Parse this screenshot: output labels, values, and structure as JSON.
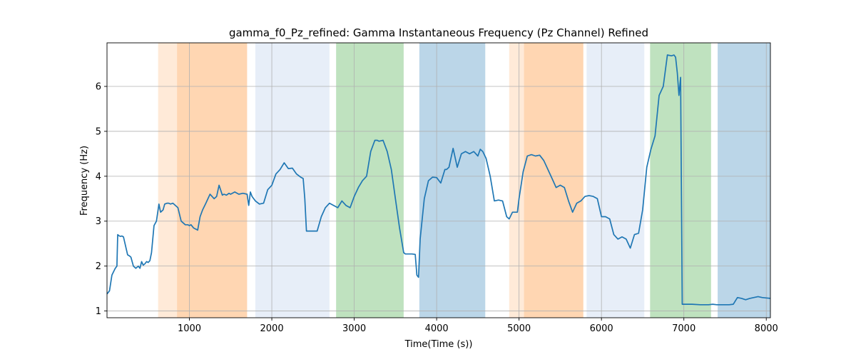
{
  "chart_data": {
    "type": "line",
    "title": "gamma_f0_Pz_refined: Gamma Instantaneous Frequency (Pz Channel) Refined",
    "xlabel": "Time(Time (s))",
    "ylabel": "Frequency (Hz)",
    "xlim": [
      0,
      8050
    ],
    "ylim": [
      0.85,
      6.97
    ],
    "xticks": [
      1000,
      2000,
      3000,
      4000,
      5000,
      6000,
      7000,
      8000
    ],
    "yticks": [
      1,
      2,
      3,
      4,
      5,
      6
    ],
    "grid": true,
    "line_color": "#1f77b4",
    "bands": [
      {
        "x0": 620,
        "x1": 850,
        "color": "#ff7f0e",
        "alpha": 0.16
      },
      {
        "x0": 850,
        "x1": 1700,
        "color": "#ff7f0e",
        "alpha": 0.32
      },
      {
        "x0": 1800,
        "x1": 2700,
        "color": "#aec7e8",
        "alpha": 0.3
      },
      {
        "x0": 2780,
        "x1": 3600,
        "color": "#2ca02c",
        "alpha": 0.3
      },
      {
        "x0": 3790,
        "x1": 4590,
        "color": "#1f77b4",
        "alpha": 0.3
      },
      {
        "x0": 4880,
        "x1": 5060,
        "color": "#ff7f0e",
        "alpha": 0.16
      },
      {
        "x0": 5060,
        "x1": 5780,
        "color": "#ff7f0e",
        "alpha": 0.32
      },
      {
        "x0": 5820,
        "x1": 6520,
        "color": "#aec7e8",
        "alpha": 0.3
      },
      {
        "x0": 6590,
        "x1": 7330,
        "color": "#2ca02c",
        "alpha": 0.3
      },
      {
        "x0": 7410,
        "x1": 8050,
        "color": "#1f77b4",
        "alpha": 0.3
      }
    ],
    "series": [
      {
        "x": [
          0,
          30,
          60,
          100,
          120,
          130,
          150,
          165,
          180,
          200,
          250,
          270,
          290,
          320,
          350,
          380,
          400,
          420,
          440,
          460,
          480,
          500,
          520,
          540,
          570,
          600,
          630,
          650,
          680,
          700,
          730,
          750,
          770,
          800,
          830,
          860,
          900,
          950,
          980,
          1000,
          1020,
          1050,
          1100,
          1130,
          1160,
          1200,
          1250,
          1300,
          1330,
          1360,
          1400,
          1420,
          1450,
          1480,
          1500,
          1550,
          1600,
          1650,
          1700,
          1720,
          1740,
          1760,
          1800,
          1850,
          1900,
          1950,
          2000,
          2050,
          2100,
          2150,
          2200,
          2250,
          2300,
          2350,
          2380,
          2400,
          2420,
          2450,
          2500,
          2550,
          2600,
          2650,
          2700,
          2750,
          2800,
          2850,
          2900,
          2950,
          3000,
          3050,
          3100,
          3150,
          3200,
          3250,
          3280,
          3300,
          3350,
          3400,
          3450,
          3500,
          3550,
          3600,
          3620,
          3650,
          3700,
          3740,
          3760,
          3780,
          3800,
          3850,
          3900,
          3950,
          4000,
          4050,
          4100,
          4120,
          4150,
          4200,
          4250,
          4300,
          4350,
          4400,
          4450,
          4500,
          4530,
          4560,
          4600,
          4650,
          4700,
          4750,
          4800,
          4850,
          4880,
          4920,
          4980,
          5000,
          5050,
          5100,
          5150,
          5200,
          5250,
          5300,
          5350,
          5400,
          5450,
          5500,
          5550,
          5600,
          5650,
          5700,
          5750,
          5800,
          5850,
          5900,
          5950,
          6000,
          6050,
          6100,
          6150,
          6200,
          6250,
          6300,
          6350,
          6400,
          6450,
          6500,
          6550,
          6600,
          6650,
          6700,
          6750,
          6800,
          6850,
          6880,
          6900,
          6920,
          6940,
          6960,
          6980,
          7000,
          7050,
          7100,
          7200,
          7300,
          7350,
          7400,
          7450,
          7500,
          7550,
          7600,
          7650,
          7700,
          7750,
          7800,
          7850,
          7900,
          7950,
          8000,
          8050
        ],
        "y": [
          1.38,
          1.45,
          1.8,
          1.95,
          2.0,
          2.7,
          2.67,
          2.66,
          2.67,
          2.65,
          2.25,
          2.23,
          2.2,
          2.0,
          1.95,
          2.0,
          1.95,
          2.1,
          2.02,
          2.05,
          2.1,
          2.08,
          2.12,
          2.3,
          2.9,
          3.0,
          3.38,
          3.2,
          3.25,
          3.38,
          3.4,
          3.4,
          3.38,
          3.4,
          3.35,
          3.3,
          3.0,
          2.92,
          2.92,
          2.9,
          2.92,
          2.85,
          2.8,
          3.1,
          3.25,
          3.4,
          3.6,
          3.5,
          3.55,
          3.8,
          3.58,
          3.6,
          3.58,
          3.62,
          3.6,
          3.65,
          3.6,
          3.62,
          3.6,
          3.35,
          3.65,
          3.55,
          3.45,
          3.38,
          3.4,
          3.7,
          3.8,
          4.05,
          4.15,
          4.3,
          4.17,
          4.18,
          4.05,
          3.98,
          3.95,
          3.5,
          2.78,
          2.78,
          2.78,
          2.78,
          3.1,
          3.3,
          3.4,
          3.35,
          3.3,
          3.45,
          3.35,
          3.3,
          3.55,
          3.75,
          3.9,
          4.0,
          4.55,
          4.8,
          4.8,
          4.78,
          4.8,
          4.55,
          4.15,
          3.5,
          2.85,
          2.3,
          2.27,
          2.27,
          2.27,
          2.26,
          1.8,
          1.75,
          2.6,
          3.5,
          3.9,
          3.98,
          3.97,
          3.85,
          4.15,
          4.15,
          4.2,
          4.62,
          4.2,
          4.5,
          4.55,
          4.5,
          4.55,
          4.45,
          4.6,
          4.55,
          4.4,
          4.0,
          3.45,
          3.47,
          3.45,
          3.1,
          3.05,
          3.2,
          3.2,
          3.5,
          4.1,
          4.45,
          4.48,
          4.45,
          4.47,
          4.35,
          4.15,
          3.95,
          3.75,
          3.8,
          3.75,
          3.45,
          3.2,
          3.4,
          3.45,
          3.55,
          3.57,
          3.55,
          3.5,
          3.1,
          3.1,
          3.05,
          2.7,
          2.6,
          2.65,
          2.6,
          2.4,
          2.7,
          2.73,
          3.25,
          4.2,
          4.6,
          4.9,
          5.8,
          6.0,
          6.7,
          6.68,
          6.7,
          6.65,
          6.3,
          5.8,
          6.2,
          1.15,
          1.15,
          1.15,
          1.15,
          1.14,
          1.14,
          1.15,
          1.14,
          1.14,
          1.14,
          1.14,
          1.15,
          1.3,
          1.28,
          1.25,
          1.28,
          1.3,
          1.32,
          1.3,
          1.29,
          1.28
        ]
      }
    ]
  }
}
